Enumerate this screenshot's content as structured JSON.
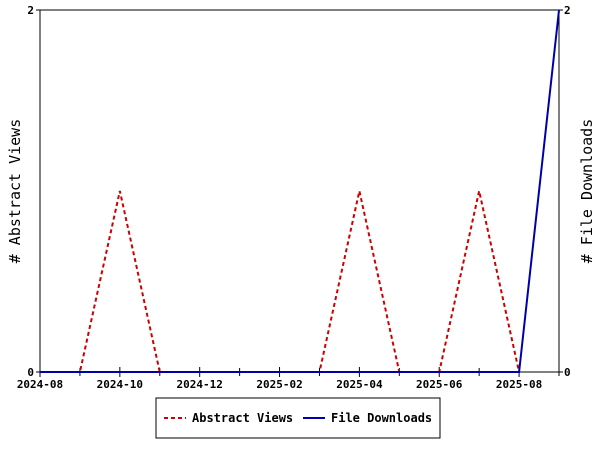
{
  "chart_data": {
    "type": "line",
    "title": "",
    "x": [
      "2024-08",
      "2024-09",
      "2024-10",
      "2024-11",
      "2024-12",
      "2025-01",
      "2025-02",
      "2025-03",
      "2025-04",
      "2025-05",
      "2025-06",
      "2025-07",
      "2025-08",
      "2025-09"
    ],
    "x_ticks": [
      "2024-08",
      "2024-10",
      "2024-12",
      "2025-02",
      "2025-04",
      "2025-06",
      "2025-08"
    ],
    "series": [
      {
        "name": "Abstract Views",
        "axis": "left",
        "style": "dashed",
        "color": "#cc0000",
        "values": [
          0,
          0,
          1,
          0,
          0,
          0,
          0,
          0,
          1,
          0,
          0,
          1,
          0,
          null
        ]
      },
      {
        "name": "File Downloads",
        "axis": "right",
        "style": "solid",
        "color": "#0000aa",
        "values": [
          0,
          0,
          0,
          0,
          0,
          0,
          0,
          0,
          0,
          0,
          0,
          0,
          0,
          2
        ]
      }
    ],
    "ylabel_left": "# Abstract Views",
    "ylabel_right": "# File Downloads",
    "ylim_left": [
      0,
      2
    ],
    "ylim_right": [
      0,
      2
    ],
    "ytick_labels_left": [
      "0",
      "2"
    ],
    "ytick_labels_right": [
      "0",
      "2"
    ],
    "grid": false,
    "legend_position": "bottom"
  }
}
